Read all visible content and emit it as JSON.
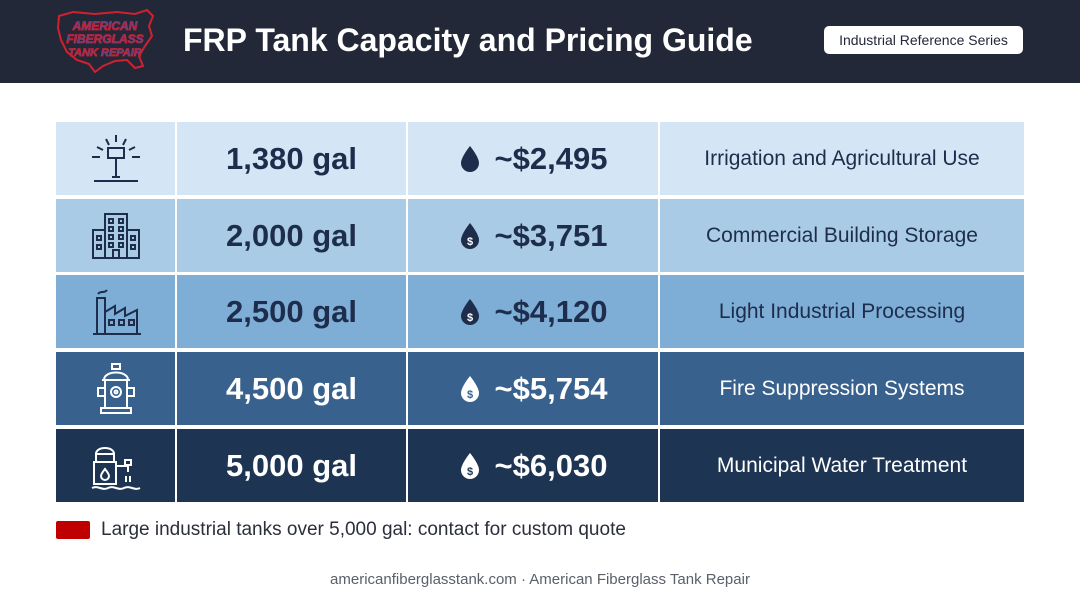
{
  "header": {
    "logo": {
      "line1": "AMERICAN",
      "line2": "FIBERGLASS",
      "line3": "TANK REPAIR",
      "color": "#d0212f"
    },
    "title": "FRP Tank Capacity and Pricing Guide",
    "badge": "Industrial Reference Series"
  },
  "rows": [
    {
      "icon": "sprinkler-icon",
      "capacity": "1,380 gal",
      "price": "~$2,495",
      "use": "Irrigation and Agricultural Use",
      "bg": "#d4e6f5",
      "text_color": "#1e2d4b",
      "price_icon": "water-drop-icon"
    },
    {
      "icon": "office-building-icon",
      "capacity": "2,000 gal",
      "price": "~$3,751",
      "use": "Commercial Building Storage",
      "bg": "#a9cbe6",
      "text_color": "#1e2d4b",
      "price_icon": "dollar-drop-icon"
    },
    {
      "icon": "factory-icon",
      "capacity": "2,500 gal",
      "price": "~$4,120",
      "use": "Light Industrial Processing",
      "bg": "#7eadd6",
      "text_color": "#1e2d4b",
      "price_icon": "dollar-drop-icon"
    },
    {
      "icon": "fire-hydrant-icon",
      "capacity": "4,500 gal",
      "price": "~$5,754",
      "use": "Fire Suppression Systems",
      "bg": "#38618d",
      "text_color": "#ffffff",
      "price_icon": "dollar-drop-icon"
    },
    {
      "icon": "water-treatment-icon",
      "capacity": "5,000 gal",
      "price": "~$6,030",
      "use": "Municipal Water Treatment",
      "bg": "#1d3553",
      "text_color": "#ffffff",
      "price_icon": "dollar-drop-icon"
    }
  ],
  "note": {
    "text": "Large industrial tanks over 5,000 gal: contact for custom quote",
    "color": "#c00000"
  },
  "footer": "americanfiberglasstank.com · American Fiberglass Tank Repair"
}
